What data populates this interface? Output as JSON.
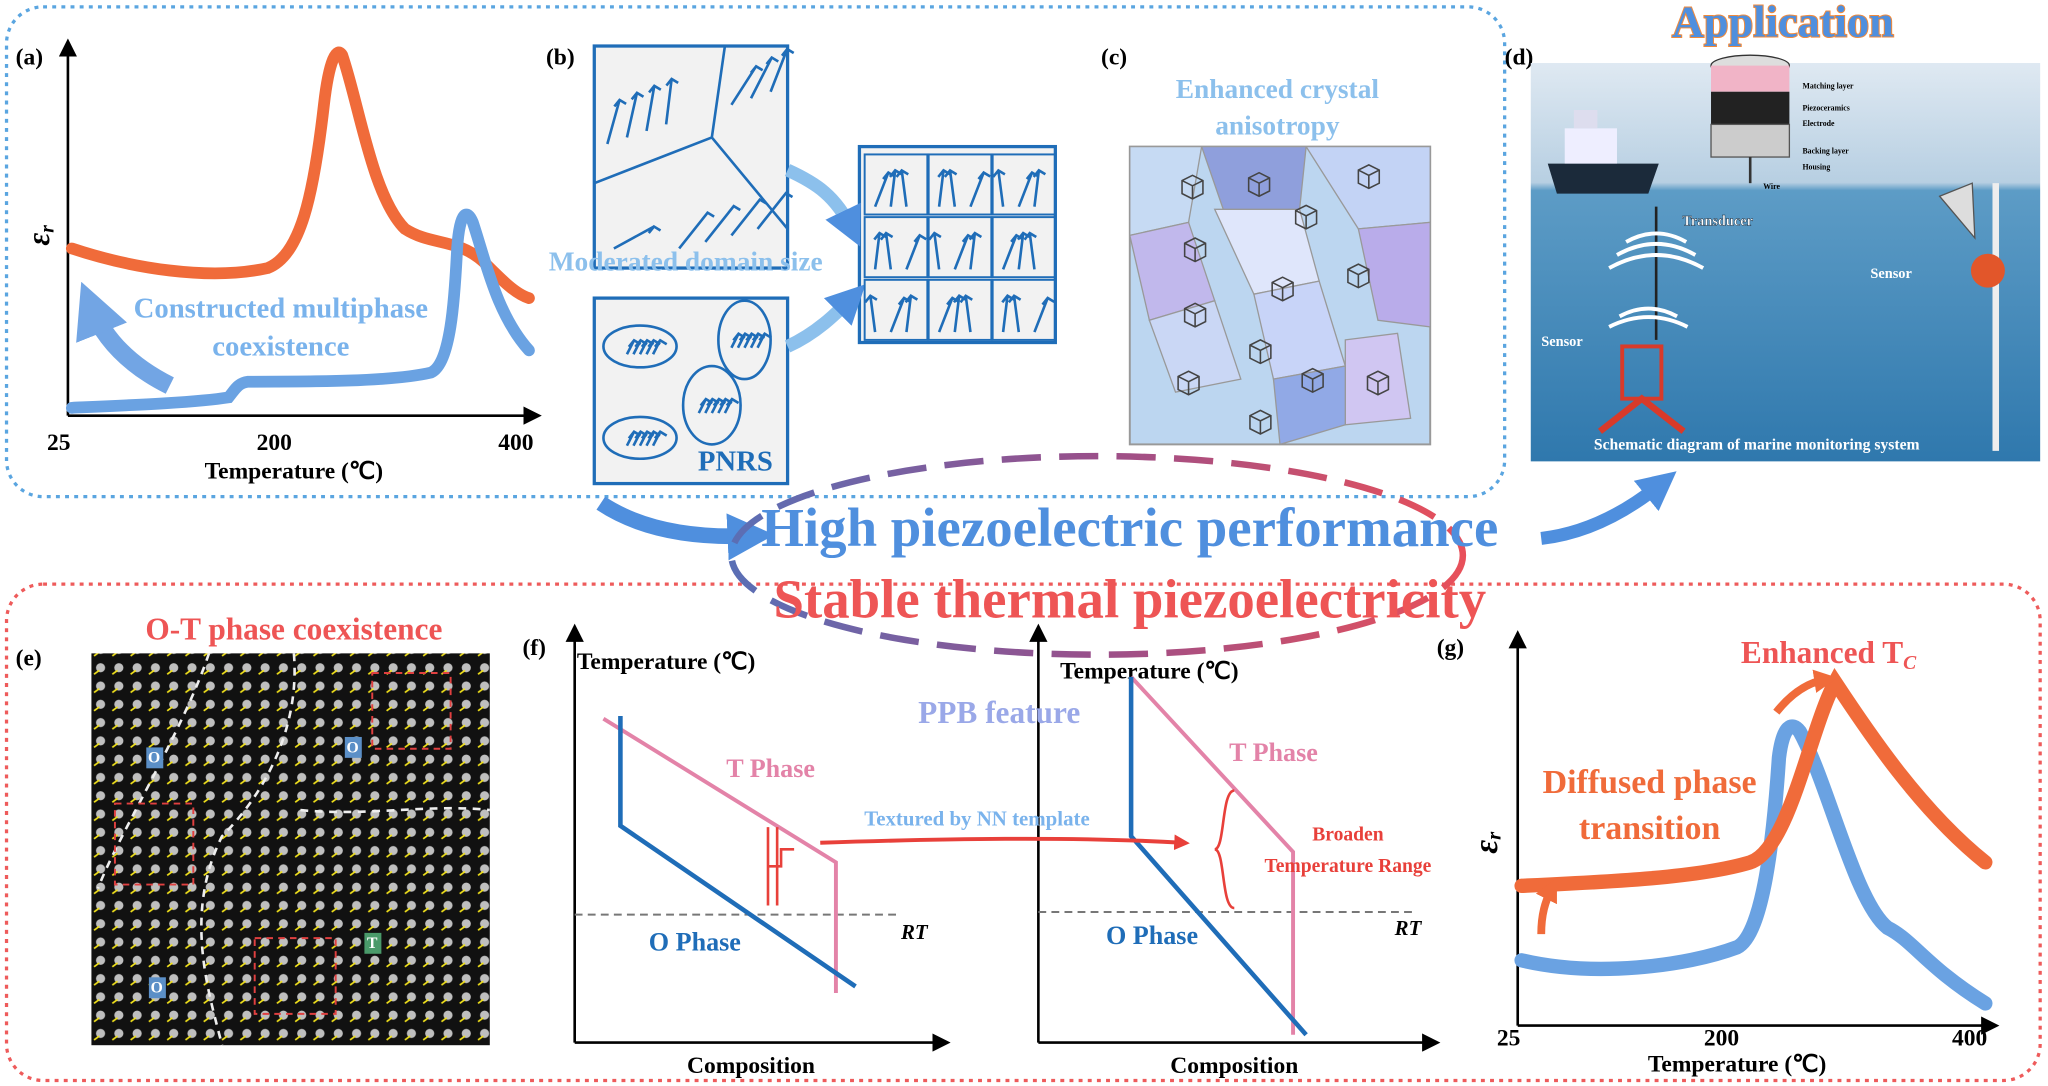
{
  "panel_a": {
    "label": "(a)",
    "y_label": "ε",
    "y_label_sub": "r",
    "x_ticks": [
      "25",
      "200",
      "400"
    ],
    "x_label": "Temperature (℃)",
    "annotation": [
      "Constructed multiphase",
      "coexistence"
    ]
  },
  "panel_b": {
    "label": "(b)",
    "caption": "Moderated domain size",
    "pnrs": "PNRS"
  },
  "panel_c": {
    "label": "(c)",
    "caption": [
      "Enhanced crystal",
      "anisotropy"
    ]
  },
  "panel_d": {
    "label": "(d)",
    "title": "Application",
    "transducer_layers": [
      "Matching layer",
      "Piezoceramics",
      "Electrode",
      "Backing layer",
      "Housing",
      "Wire"
    ],
    "transducer": "Transducer",
    "sensors": [
      "Sensor",
      "Sensor"
    ],
    "caption": "Schematic diagram of marine monitoring system"
  },
  "center": {
    "line1": "High piezoelectric performance",
    "line2": "Stable thermal piezoelectricity"
  },
  "panel_e": {
    "label": "(e)",
    "title": "O-T phase coexistence",
    "markers": [
      "O",
      "O",
      "O",
      "T"
    ]
  },
  "panel_f": {
    "label": "(f)",
    "feature": "PPB feature",
    "arrow_label": "Textured by NN template",
    "bracket": [
      "Broaden",
      "Temperature Range"
    ],
    "left": {
      "y_label": "Temperature (℃)",
      "x_label": "Composition",
      "t_phase": "T Phase",
      "o_phase": "O Phase",
      "rt": "RT"
    },
    "right": {
      "y_label": "Temperature (℃)",
      "x_label": "Composition",
      "t_phase": "T Phase",
      "o_phase": "O Phase",
      "rt": "RT"
    }
  },
  "panel_g": {
    "label": "(g)",
    "title": "Enhanced T",
    "title_sub": "C",
    "annotation": [
      "Diffused phase",
      "transition"
    ],
    "y_label": "ε",
    "y_label_sub": "r",
    "x_ticks": [
      "25",
      "200",
      "400"
    ],
    "x_label": "Temperature (℃)"
  }
}
